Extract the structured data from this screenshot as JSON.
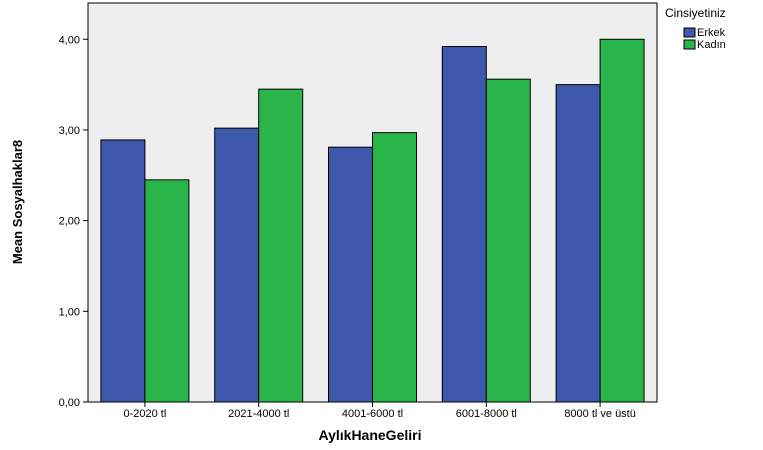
{
  "chart_data": {
    "type": "bar",
    "xlabel": "AylıkHaneGeliri",
    "ylabel": "Mean Sosyalhaklar8",
    "ylim": [
      0,
      4.4
    ],
    "yticks": [
      "0,00",
      "1,00",
      "2,00",
      "3,00",
      "4,00"
    ],
    "categories": [
      "0-2020 tl",
      "2021-4000 tl",
      "4001-6000 tl",
      "6001-8000 tl",
      "8000 tl ve üstü"
    ],
    "legend_title": "Cinsiyetiniz",
    "legend_position": "top-right-outside",
    "grid": false,
    "series": [
      {
        "name": "Erkek",
        "color": "#3e58ac",
        "values": [
          2.89,
          3.02,
          2.81,
          3.92,
          3.5
        ]
      },
      {
        "name": "Kadın",
        "color": "#2ab54a",
        "values": [
          2.45,
          3.45,
          2.97,
          3.56,
          4.0
        ]
      }
    ],
    "plot_background": "#eeeeee"
  }
}
